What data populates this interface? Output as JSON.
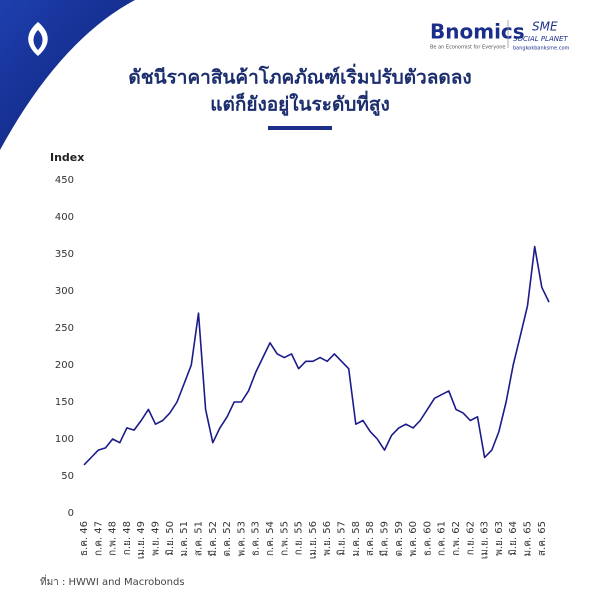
{
  "header": {
    "brand": "Bnomics",
    "tagline": "Be an Economist for Everyone",
    "partner": "SME",
    "partner_sub": "SOCIAL PLANET",
    "site": "bangkokbanksme.com"
  },
  "chart_data": {
    "type": "line",
    "title": [
      "ดัชนีราคาสินค้าโภคภัณฑ์เริ่มปรับตัวลดลง",
      "แต่ก็ยังอยู่ในระดับที่สูง"
    ],
    "ylabel": "Index",
    "source": "ที่มา : HWWI and Macrobonds",
    "color": "#1b1b8a",
    "categories": [
      "ธ.ค. 46",
      null,
      "ก.ค. 47",
      null,
      "ก.พ. 48",
      null,
      "ก.ย. 48",
      null,
      "เม.ย. 49",
      null,
      "พ.ย. 49",
      null,
      "มิ.ย. 50",
      null,
      "ม.ค. 51",
      null,
      "ส.ค. 51",
      null,
      "มี.ค. 52",
      null,
      "ต.ค. 52",
      null,
      "พ.ค. 53",
      null,
      "ธ.ค. 53",
      null,
      "ก.ค. 54",
      null,
      "ก.พ. 55",
      null,
      "ก.ย. 55",
      null,
      "เม.ย. 56",
      null,
      "พ.ย. 56",
      null,
      "มิ.ย. 57",
      null,
      "ม.ค. 58",
      null,
      "ส.ค. 58",
      null,
      "มี.ค. 59",
      null,
      "ต.ค. 59",
      null,
      "พ.ค. 60",
      null,
      "ธ.ค. 60",
      null,
      "ก.ค. 61",
      null,
      "ก.พ. 62",
      null,
      "ก.ย. 62",
      null,
      "เม.ย. 63",
      null,
      "พ.ย. 63",
      null,
      "มิ.ย. 64",
      null,
      "ม.ค. 65",
      null,
      "ส.ค. 65",
      null
    ],
    "values": [
      65,
      75,
      85,
      88,
      100,
      95,
      115,
      112,
      125,
      140,
      120,
      125,
      135,
      150,
      175,
      200,
      270,
      140,
      95,
      115,
      130,
      150,
      150,
      165,
      190,
      210,
      230,
      215,
      210,
      215,
      195,
      205,
      205,
      210,
      205,
      215,
      205,
      195,
      120,
      125,
      110,
      100,
      85,
      105,
      115,
      120,
      115,
      125,
      140,
      155,
      160,
      165,
      140,
      135,
      125,
      130,
      75,
      85,
      110,
      150,
      200,
      240,
      280,
      360,
      305,
      285
    ],
    "ylim": [
      0,
      450
    ],
    "yticks": [
      0,
      50,
      100,
      150,
      200,
      250,
      300,
      350,
      400,
      450
    ]
  }
}
